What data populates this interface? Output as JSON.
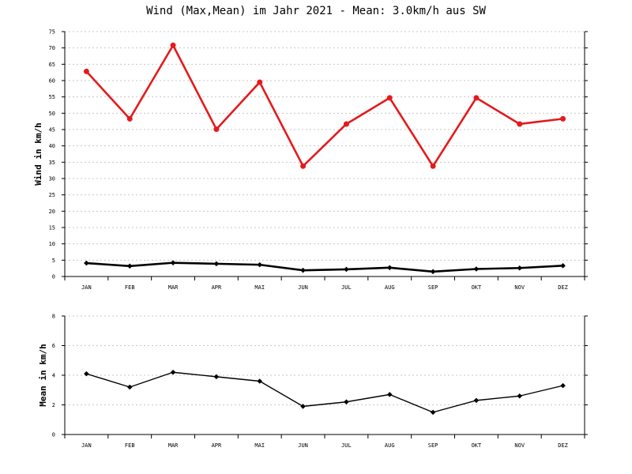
{
  "chart_data": [
    {
      "type": "line",
      "title": "Wind (Max,Mean) im Jahr 2021 - Mean: 3.0km/h aus SW",
      "xlabel": "",
      "ylabel": "Wind in km/h",
      "ylim": [
        0,
        75
      ],
      "yticks": [
        0,
        5,
        10,
        15,
        20,
        25,
        30,
        35,
        40,
        45,
        50,
        55,
        60,
        65,
        70,
        75
      ],
      "grid": true,
      "categories": [
        "JAN",
        "FEB",
        "MAR",
        "APR",
        "MAI",
        "JUN",
        "JUL",
        "AUG",
        "SEP",
        "OKT",
        "NOV",
        "DEZ"
      ],
      "series": [
        {
          "name": "Max",
          "color": "#e41a1c",
          "marker": "circle",
          "values": [
            62.8,
            48.3,
            70.8,
            45.1,
            59.5,
            33.8,
            46.7,
            54.7,
            33.8,
            54.7,
            46.7,
            48.3
          ]
        },
        {
          "name": "Mean",
          "color": "#000000",
          "marker": "diamond",
          "values": [
            4.1,
            3.2,
            4.2,
            3.9,
            3.6,
            1.9,
            2.2,
            2.7,
            1.5,
            2.3,
            2.6,
            3.3
          ]
        }
      ]
    },
    {
      "type": "line",
      "title": "",
      "xlabel": "",
      "ylabel": "Mean in km/h",
      "ylim": [
        0,
        8
      ],
      "yticks": [
        0,
        2,
        4,
        6,
        8
      ],
      "grid": true,
      "categories": [
        "JAN",
        "FEB",
        "MAR",
        "APR",
        "MAI",
        "JUN",
        "JUL",
        "AUG",
        "SEP",
        "OKT",
        "NOV",
        "DEZ"
      ],
      "series": [
        {
          "name": "Mean",
          "color": "#000000",
          "marker": "diamond",
          "values": [
            4.1,
            3.2,
            4.2,
            3.9,
            3.6,
            1.9,
            2.2,
            2.7,
            1.5,
            2.3,
            2.6,
            3.3
          ]
        }
      ]
    }
  ]
}
